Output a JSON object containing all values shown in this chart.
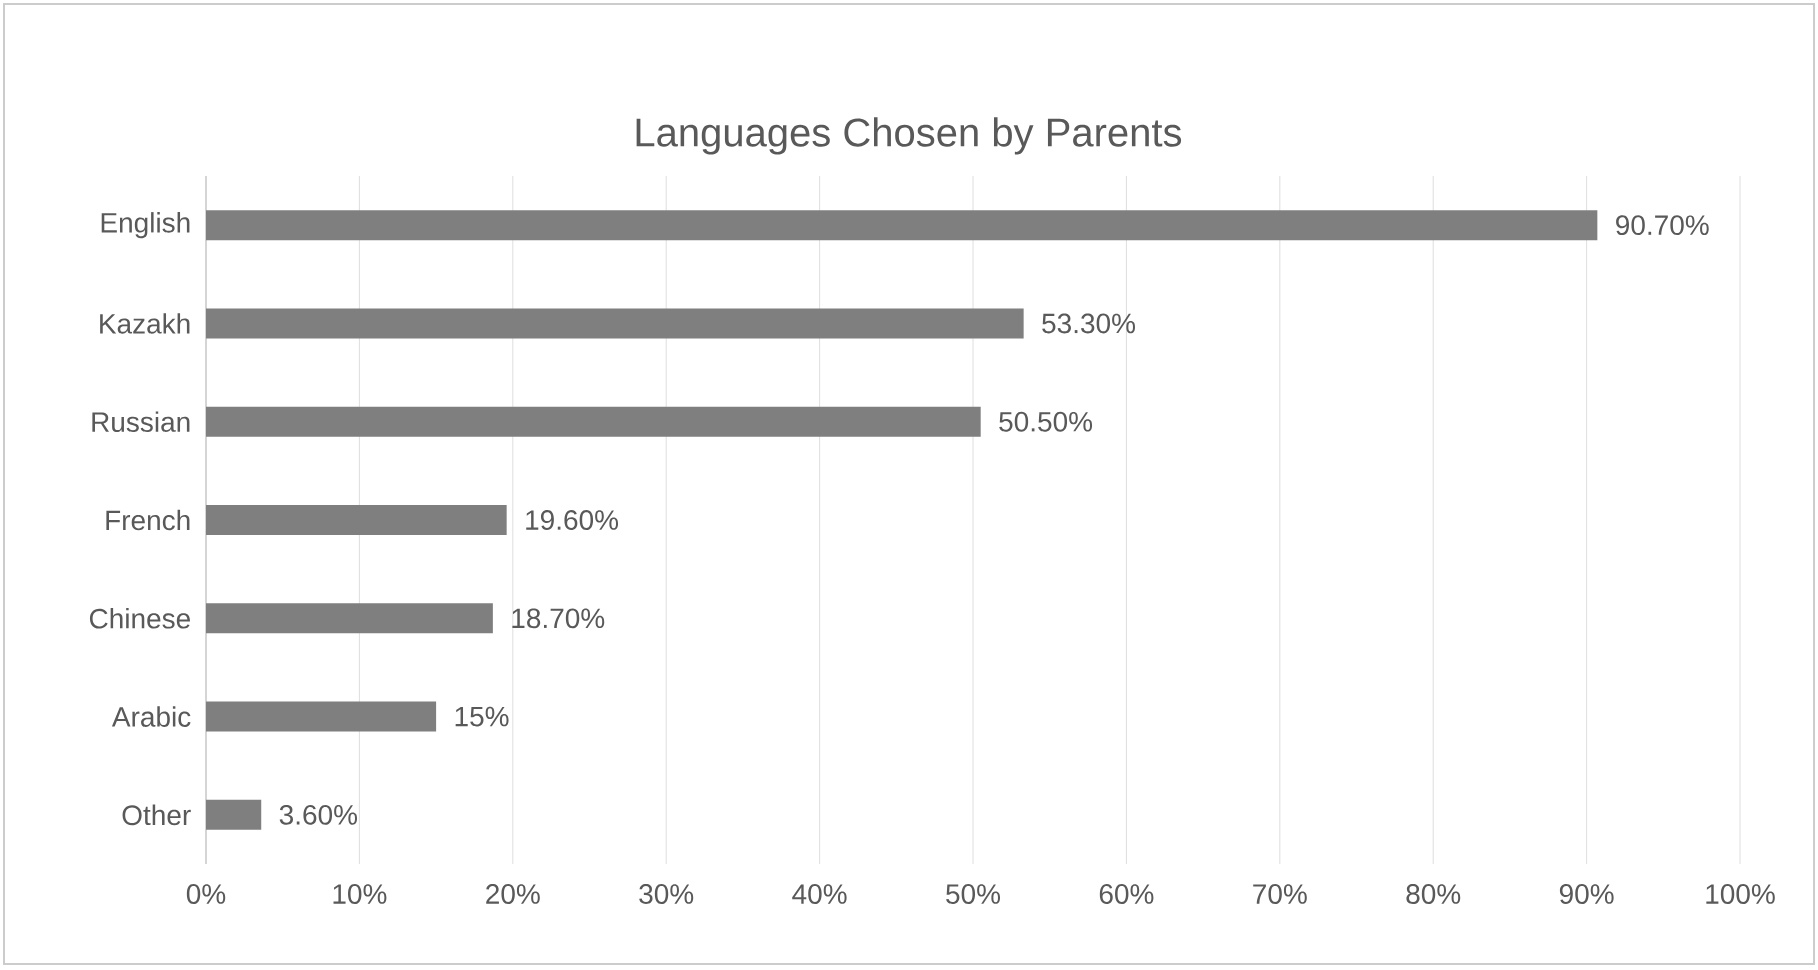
{
  "chart_data": {
    "type": "bar",
    "orientation": "horizontal",
    "title": "Languages Chosen by Parents",
    "categories": [
      "English",
      "Kazakh",
      "Russian",
      "French",
      "Chinese",
      "Arabic",
      "Other"
    ],
    "values": [
      90.7,
      53.3,
      50.5,
      19.6,
      18.7,
      15,
      3.6
    ],
    "value_labels": [
      "90.70%",
      "53.30%",
      "50.50%",
      "19.60%",
      "18.70%",
      "15%",
      "3.60%"
    ],
    "color": "#7f7f7f",
    "xlim": [
      0,
      100
    ],
    "xticks": [
      {
        "value": 0,
        "label": "0%"
      },
      {
        "value": 10,
        "label": "10%"
      },
      {
        "value": 20,
        "label": "20%"
      },
      {
        "value": 30,
        "label": "30%"
      },
      {
        "value": 40,
        "label": "40%"
      },
      {
        "value": 50,
        "label": "50%"
      },
      {
        "value": 60,
        "label": "60%"
      },
      {
        "value": 70,
        "label": "70%"
      },
      {
        "value": 80,
        "label": "80%"
      },
      {
        "value": 90,
        "label": "90%"
      },
      {
        "value": 100,
        "label": "100%"
      }
    ],
    "grid": "x"
  }
}
